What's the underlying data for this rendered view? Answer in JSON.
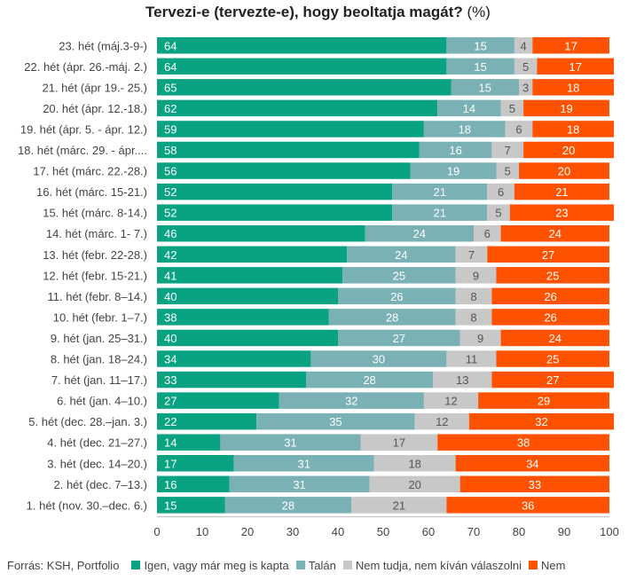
{
  "chart_data": {
    "type": "bar",
    "orientation": "horizontal",
    "stacked": true,
    "title": "Tervezi-e (tervezte-e), hogy beoltatja magát?",
    "unit": "(%)",
    "source": "Forrás: KSH, Portfolio",
    "xlim": [
      0,
      100
    ],
    "xticks": [
      0,
      10,
      20,
      30,
      40,
      50,
      60,
      70,
      80,
      90,
      100
    ],
    "legend_position": "bottom",
    "categories": [
      "23. hét (máj.3-9-)",
      "22. hét (ápr. 26.-máj. 2.)",
      "21. hét (ápr 19.- 25.)",
      "20. hét (ápr. 12.-18.)",
      "19. hét (ápr. 5. - ápr. 12.)",
      "18. hét (márc. 29. - ápr....",
      "17. hét (márc. 22.-28.)",
      "16. hét (márc. 15-21.)",
      "15. hét (márc. 8-14.)",
      "14. hét (márc. 1- 7.)",
      "13. hét (febr. 22-28.)",
      "12. hét (febr. 15-21.)",
      "11. hét (febr. 8–14.)",
      "10. hét (febr. 1–7.)",
      "9. hét (jan. 25–31.)",
      "8. hét (jan. 18–24.)",
      "7. hét (jan. 11–17.)",
      "6. hét (jan. 4–10.)",
      "5. hét (dec. 28.–jan. 3.)",
      "4. hét (dec. 21–27.)",
      "3. hét (dec. 14–20.)",
      "2. hét (dec. 7–13.)",
      "1. hét (nov. 30.–dec. 6.)"
    ],
    "series": [
      {
        "name": "Igen, vagy már meg is kapta",
        "color": "#0aa382",
        "values": [
          64,
          64,
          65,
          62,
          59,
          58,
          56,
          52,
          52,
          46,
          42,
          41,
          40,
          38,
          40,
          34,
          33,
          27,
          22,
          14,
          17,
          16,
          15
        ]
      },
      {
        "name": "Talán",
        "color": "#79b1b4",
        "values": [
          15,
          15,
          15,
          14,
          18,
          16,
          19,
          21,
          21,
          24,
          24,
          25,
          26,
          28,
          27,
          30,
          28,
          32,
          35,
          31,
          31,
          31,
          28
        ]
      },
      {
        "name": "Nem tudja, nem kíván válaszolni",
        "color": "#c8c8c8",
        "values": [
          4,
          5,
          3,
          5,
          6,
          7,
          5,
          6,
          5,
          6,
          7,
          9,
          8,
          8,
          9,
          11,
          13,
          12,
          12,
          17,
          18,
          20,
          21
        ]
      },
      {
        "name": "Nem",
        "color": "#ff5200",
        "values": [
          17,
          17,
          18,
          19,
          18,
          20,
          20,
          21,
          23,
          24,
          27,
          25,
          26,
          26,
          24,
          25,
          27,
          29,
          32,
          38,
          34,
          33,
          36
        ]
      }
    ]
  }
}
